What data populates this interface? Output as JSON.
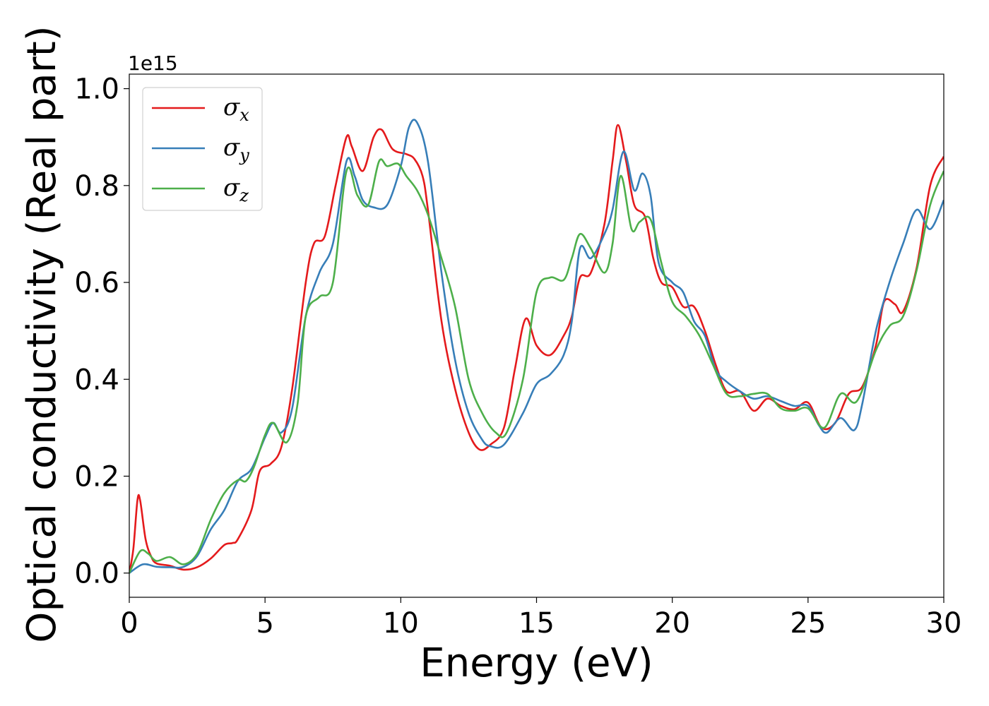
{
  "chart_data": {
    "type": "line",
    "xlabel": "Energy (eV)",
    "ylabel": "Optical conductivity (Real part)",
    "y_offset_label": "1e15",
    "xlim": [
      0,
      30
    ],
    "ylim": [
      -0.05,
      1.03
    ],
    "x_ticks": [
      0,
      5,
      10,
      15,
      20,
      25,
      30
    ],
    "x_tick_labels": [
      "0",
      "5",
      "10",
      "15",
      "20",
      "25",
      "30"
    ],
    "y_ticks": [
      0.0,
      0.2,
      0.4,
      0.6,
      0.8,
      1.0
    ],
    "y_tick_labels": [
      "0.0",
      "0.2",
      "0.4",
      "0.6",
      "0.8",
      "1.0"
    ],
    "grid": false,
    "legend_position": "top-left",
    "series": [
      {
        "name": "σx",
        "symbol": "σ",
        "subscript": "x",
        "color": "#e41a1c",
        "points": [
          [
            0,
            0.0
          ],
          [
            0.15,
            0.05
          ],
          [
            0.3,
            0.15
          ],
          [
            0.4,
            0.15
          ],
          [
            0.6,
            0.07
          ],
          [
            0.8,
            0.035
          ],
          [
            1.0,
            0.02
          ],
          [
            1.5,
            0.015
          ],
          [
            2.0,
            0.007
          ],
          [
            2.5,
            0.012
          ],
          [
            3.0,
            0.03
          ],
          [
            3.5,
            0.058
          ],
          [
            3.8,
            0.062
          ],
          [
            4.0,
            0.07
          ],
          [
            4.5,
            0.13
          ],
          [
            4.8,
            0.21
          ],
          [
            5.2,
            0.225
          ],
          [
            5.6,
            0.26
          ],
          [
            6.0,
            0.38
          ],
          [
            6.5,
            0.6
          ],
          [
            6.8,
            0.68
          ],
          [
            7.2,
            0.695
          ],
          [
            7.6,
            0.8
          ],
          [
            8.0,
            0.9
          ],
          [
            8.2,
            0.88
          ],
          [
            8.6,
            0.83
          ],
          [
            9.0,
            0.9
          ],
          [
            9.3,
            0.915
          ],
          [
            9.7,
            0.875
          ],
          [
            10.2,
            0.865
          ],
          [
            10.5,
            0.855
          ],
          [
            10.8,
            0.82
          ],
          [
            11.0,
            0.75
          ],
          [
            11.5,
            0.52
          ],
          [
            12.0,
            0.38
          ],
          [
            12.5,
            0.29
          ],
          [
            12.9,
            0.255
          ],
          [
            13.3,
            0.265
          ],
          [
            13.8,
            0.3
          ],
          [
            14.2,
            0.42
          ],
          [
            14.6,
            0.525
          ],
          [
            15.0,
            0.47
          ],
          [
            15.5,
            0.45
          ],
          [
            16.0,
            0.49
          ],
          [
            16.3,
            0.53
          ],
          [
            16.6,
            0.61
          ],
          [
            17.0,
            0.62
          ],
          [
            17.5,
            0.72
          ],
          [
            17.8,
            0.85
          ],
          [
            18.0,
            0.925
          ],
          [
            18.3,
            0.85
          ],
          [
            18.6,
            0.76
          ],
          [
            19.0,
            0.735
          ],
          [
            19.3,
            0.65
          ],
          [
            19.6,
            0.6
          ],
          [
            20.0,
            0.59
          ],
          [
            20.4,
            0.55
          ],
          [
            20.8,
            0.55
          ],
          [
            21.2,
            0.5
          ],
          [
            21.6,
            0.43
          ],
          [
            22.0,
            0.375
          ],
          [
            22.5,
            0.375
          ],
          [
            23.0,
            0.335
          ],
          [
            23.5,
            0.36
          ],
          [
            24.0,
            0.345
          ],
          [
            24.5,
            0.338
          ],
          [
            25.0,
            0.352
          ],
          [
            25.5,
            0.3
          ],
          [
            26.0,
            0.31
          ],
          [
            26.5,
            0.37
          ],
          [
            27.0,
            0.385
          ],
          [
            27.5,
            0.47
          ],
          [
            27.8,
            0.56
          ],
          [
            28.2,
            0.555
          ],
          [
            28.5,
            0.54
          ],
          [
            29.0,
            0.63
          ],
          [
            29.5,
            0.8
          ],
          [
            30.0,
            0.86
          ]
        ]
      },
      {
        "name": "σy",
        "symbol": "σ",
        "subscript": "y",
        "color": "#377eb8",
        "points": [
          [
            0,
            0.0
          ],
          [
            0.5,
            0.018
          ],
          [
            1.0,
            0.013
          ],
          [
            1.5,
            0.012
          ],
          [
            2.0,
            0.013
          ],
          [
            2.5,
            0.035
          ],
          [
            3.0,
            0.09
          ],
          [
            3.5,
            0.13
          ],
          [
            4.0,
            0.19
          ],
          [
            4.5,
            0.215
          ],
          [
            5.0,
            0.28
          ],
          [
            5.3,
            0.31
          ],
          [
            5.6,
            0.29
          ],
          [
            6.0,
            0.34
          ],
          [
            6.5,
            0.53
          ],
          [
            7.0,
            0.62
          ],
          [
            7.5,
            0.68
          ],
          [
            8.0,
            0.85
          ],
          [
            8.3,
            0.82
          ],
          [
            8.6,
            0.77
          ],
          [
            9.0,
            0.755
          ],
          [
            9.5,
            0.76
          ],
          [
            10.0,
            0.84
          ],
          [
            10.3,
            0.92
          ],
          [
            10.6,
            0.93
          ],
          [
            11.0,
            0.85
          ],
          [
            11.5,
            0.62
          ],
          [
            12.0,
            0.44
          ],
          [
            12.5,
            0.33
          ],
          [
            13.0,
            0.275
          ],
          [
            13.3,
            0.262
          ],
          [
            13.8,
            0.265
          ],
          [
            14.5,
            0.33
          ],
          [
            15.0,
            0.39
          ],
          [
            15.5,
            0.41
          ],
          [
            16.0,
            0.45
          ],
          [
            16.3,
            0.52
          ],
          [
            16.6,
            0.67
          ],
          [
            17.0,
            0.65
          ],
          [
            17.5,
            0.7
          ],
          [
            17.8,
            0.75
          ],
          [
            18.2,
            0.87
          ],
          [
            18.6,
            0.79
          ],
          [
            18.9,
            0.825
          ],
          [
            19.2,
            0.78
          ],
          [
            19.5,
            0.64
          ],
          [
            20.0,
            0.6
          ],
          [
            20.4,
            0.58
          ],
          [
            20.8,
            0.52
          ],
          [
            21.2,
            0.49
          ],
          [
            21.6,
            0.42
          ],
          [
            22.0,
            0.395
          ],
          [
            22.5,
            0.375
          ],
          [
            23.0,
            0.36
          ],
          [
            23.5,
            0.365
          ],
          [
            24.0,
            0.355
          ],
          [
            24.5,
            0.345
          ],
          [
            25.0,
            0.345
          ],
          [
            25.4,
            0.305
          ],
          [
            25.7,
            0.29
          ],
          [
            26.2,
            0.32
          ],
          [
            26.7,
            0.295
          ],
          [
            27.0,
            0.35
          ],
          [
            27.5,
            0.5
          ],
          [
            28.0,
            0.6
          ],
          [
            28.5,
            0.68
          ],
          [
            29.0,
            0.75
          ],
          [
            29.5,
            0.71
          ],
          [
            30.0,
            0.77
          ]
        ]
      },
      {
        "name": "σz",
        "symbol": "σ",
        "subscript": "z",
        "color": "#4daf4a",
        "points": [
          [
            0,
            0.0
          ],
          [
            0.4,
            0.045
          ],
          [
            0.7,
            0.04
          ],
          [
            1.0,
            0.025
          ],
          [
            1.5,
            0.033
          ],
          [
            2.0,
            0.018
          ],
          [
            2.5,
            0.04
          ],
          [
            3.0,
            0.11
          ],
          [
            3.5,
            0.165
          ],
          [
            4.0,
            0.192
          ],
          [
            4.3,
            0.19
          ],
          [
            4.6,
            0.22
          ],
          [
            5.0,
            0.285
          ],
          [
            5.3,
            0.31
          ],
          [
            5.8,
            0.27
          ],
          [
            6.2,
            0.35
          ],
          [
            6.5,
            0.53
          ],
          [
            7.0,
            0.57
          ],
          [
            7.5,
            0.6
          ],
          [
            8.0,
            0.83
          ],
          [
            8.4,
            0.78
          ],
          [
            8.8,
            0.76
          ],
          [
            9.2,
            0.85
          ],
          [
            9.5,
            0.84
          ],
          [
            9.9,
            0.845
          ],
          [
            10.2,
            0.82
          ],
          [
            10.6,
            0.79
          ],
          [
            11.0,
            0.74
          ],
          [
            11.5,
            0.65
          ],
          [
            12.0,
            0.55
          ],
          [
            12.5,
            0.4
          ],
          [
            13.0,
            0.33
          ],
          [
            13.5,
            0.29
          ],
          [
            13.9,
            0.29
          ],
          [
            14.5,
            0.4
          ],
          [
            15.0,
            0.58
          ],
          [
            15.5,
            0.61
          ],
          [
            16.0,
            0.605
          ],
          [
            16.3,
            0.65
          ],
          [
            16.6,
            0.7
          ],
          [
            17.0,
            0.67
          ],
          [
            17.5,
            0.62
          ],
          [
            17.8,
            0.68
          ],
          [
            18.1,
            0.82
          ],
          [
            18.5,
            0.71
          ],
          [
            18.8,
            0.725
          ],
          [
            19.2,
            0.73
          ],
          [
            19.6,
            0.64
          ],
          [
            20.0,
            0.56
          ],
          [
            20.5,
            0.53
          ],
          [
            21.0,
            0.49
          ],
          [
            21.5,
            0.43
          ],
          [
            22.0,
            0.37
          ],
          [
            22.5,
            0.365
          ],
          [
            23.0,
            0.37
          ],
          [
            23.5,
            0.37
          ],
          [
            24.0,
            0.34
          ],
          [
            24.5,
            0.335
          ],
          [
            25.0,
            0.34
          ],
          [
            25.6,
            0.3
          ],
          [
            26.2,
            0.37
          ],
          [
            26.8,
            0.355
          ],
          [
            27.5,
            0.46
          ],
          [
            28.0,
            0.51
          ],
          [
            28.5,
            0.53
          ],
          [
            29.0,
            0.625
          ],
          [
            29.5,
            0.76
          ],
          [
            30.0,
            0.83
          ]
        ]
      }
    ]
  }
}
